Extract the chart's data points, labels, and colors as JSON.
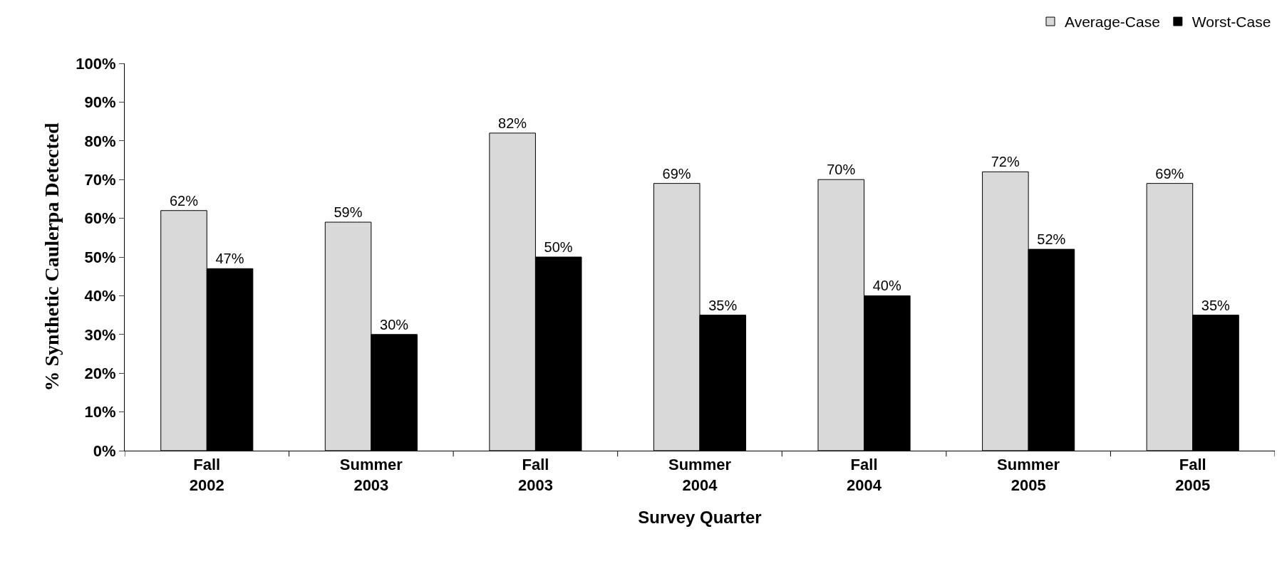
{
  "chart_data": {
    "type": "bar",
    "xlabel": "Survey Quarter",
    "ylabel": "% Synthetic Caulerpa Detected",
    "categories": [
      "Fall\n2002",
      "Summer\n2003",
      "Fall\n2003",
      "Summer\n2004",
      "Fall\n2004",
      "Summer\n2005",
      "Fall\n2005"
    ],
    "series": [
      {
        "name": "Average-Case",
        "color": "#d9d9d9",
        "values": [
          62,
          59,
          82,
          69,
          70,
          72,
          69
        ],
        "value_labels": [
          "62%",
          "59%",
          "82%",
          "69%",
          "70%",
          "72%",
          "69%"
        ]
      },
      {
        "name": "Worst-Case",
        "color": "#000000",
        "values": [
          47,
          30,
          50,
          35,
          40,
          52,
          35
        ],
        "value_labels": [
          "47%",
          "30%",
          "50%",
          "35%",
          "40%",
          "52%",
          "35%"
        ]
      }
    ],
    "ylim": [
      0,
      100
    ],
    "yticks": [
      {
        "value": 0,
        "label": "0%"
      },
      {
        "value": 10,
        "label": "10%"
      },
      {
        "value": 20,
        "label": "20%"
      },
      {
        "value": 30,
        "label": "30%"
      },
      {
        "value": 40,
        "label": "40%"
      },
      {
        "value": 50,
        "label": "50%"
      },
      {
        "value": 60,
        "label": "60%"
      },
      {
        "value": 70,
        "label": "70%"
      },
      {
        "value": 80,
        "label": "80%"
      },
      {
        "value": 90,
        "label": "90%"
      },
      {
        "value": 100,
        "label": "100%"
      }
    ],
    "legend": "top right"
  }
}
